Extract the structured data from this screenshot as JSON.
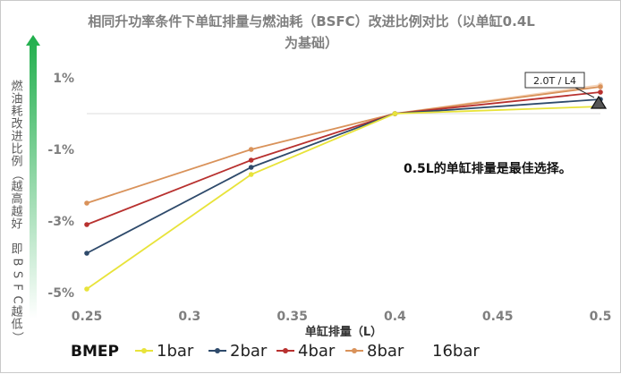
{
  "chart_data": {
    "type": "line",
    "title_lines": [
      "相同升功率条件下单缸排量与燃油耗（BSFC）改进比例对比（以单缸0.4L",
      "为基础）"
    ],
    "xlabel": "单缸排量（L）",
    "ylabel": "燃油耗改进比例（越高越好 即BSFC越低）",
    "x": [
      0.25,
      0.33,
      0.4,
      0.5
    ],
    "x_ticks": [
      "0.25",
      "0.3",
      "0.35",
      "0.4",
      "0.45",
      "0.5"
    ],
    "x_tick_values": [
      0.25,
      0.3,
      0.35,
      0.4,
      0.45,
      0.5
    ],
    "y_ticks": [
      "1%",
      "-1%",
      "-3%",
      "-5%"
    ],
    "y_tick_values": [
      1,
      -1,
      -3,
      -5
    ],
    "xlim": [
      0.25,
      0.5
    ],
    "ylim": [
      -5,
      1
    ],
    "legend_title": "BMEP",
    "series": [
      {
        "name": "1bar",
        "color": "#e8e33a",
        "values": [
          -4.9,
          -1.7,
          0,
          0.2
        ]
      },
      {
        "name": "2bar",
        "color": "#2e4a6b",
        "values": [
          -3.9,
          -1.5,
          0,
          0.4
        ]
      },
      {
        "name": "4bar",
        "color": "#b8312f",
        "values": [
          -3.1,
          -1.3,
          0,
          0.6
        ]
      },
      {
        "name": "8bar",
        "color": "#d9925a",
        "values": [
          -2.5,
          -1.0,
          0,
          0.75
        ]
      },
      {
        "name": "16bar",
        "color": "#f4d3b8",
        "values": [
          null,
          null,
          0,
          0.8
        ]
      }
    ],
    "annotation": "0.5L的单缸排量是最佳选择。",
    "callout": "2.0T / L4"
  }
}
